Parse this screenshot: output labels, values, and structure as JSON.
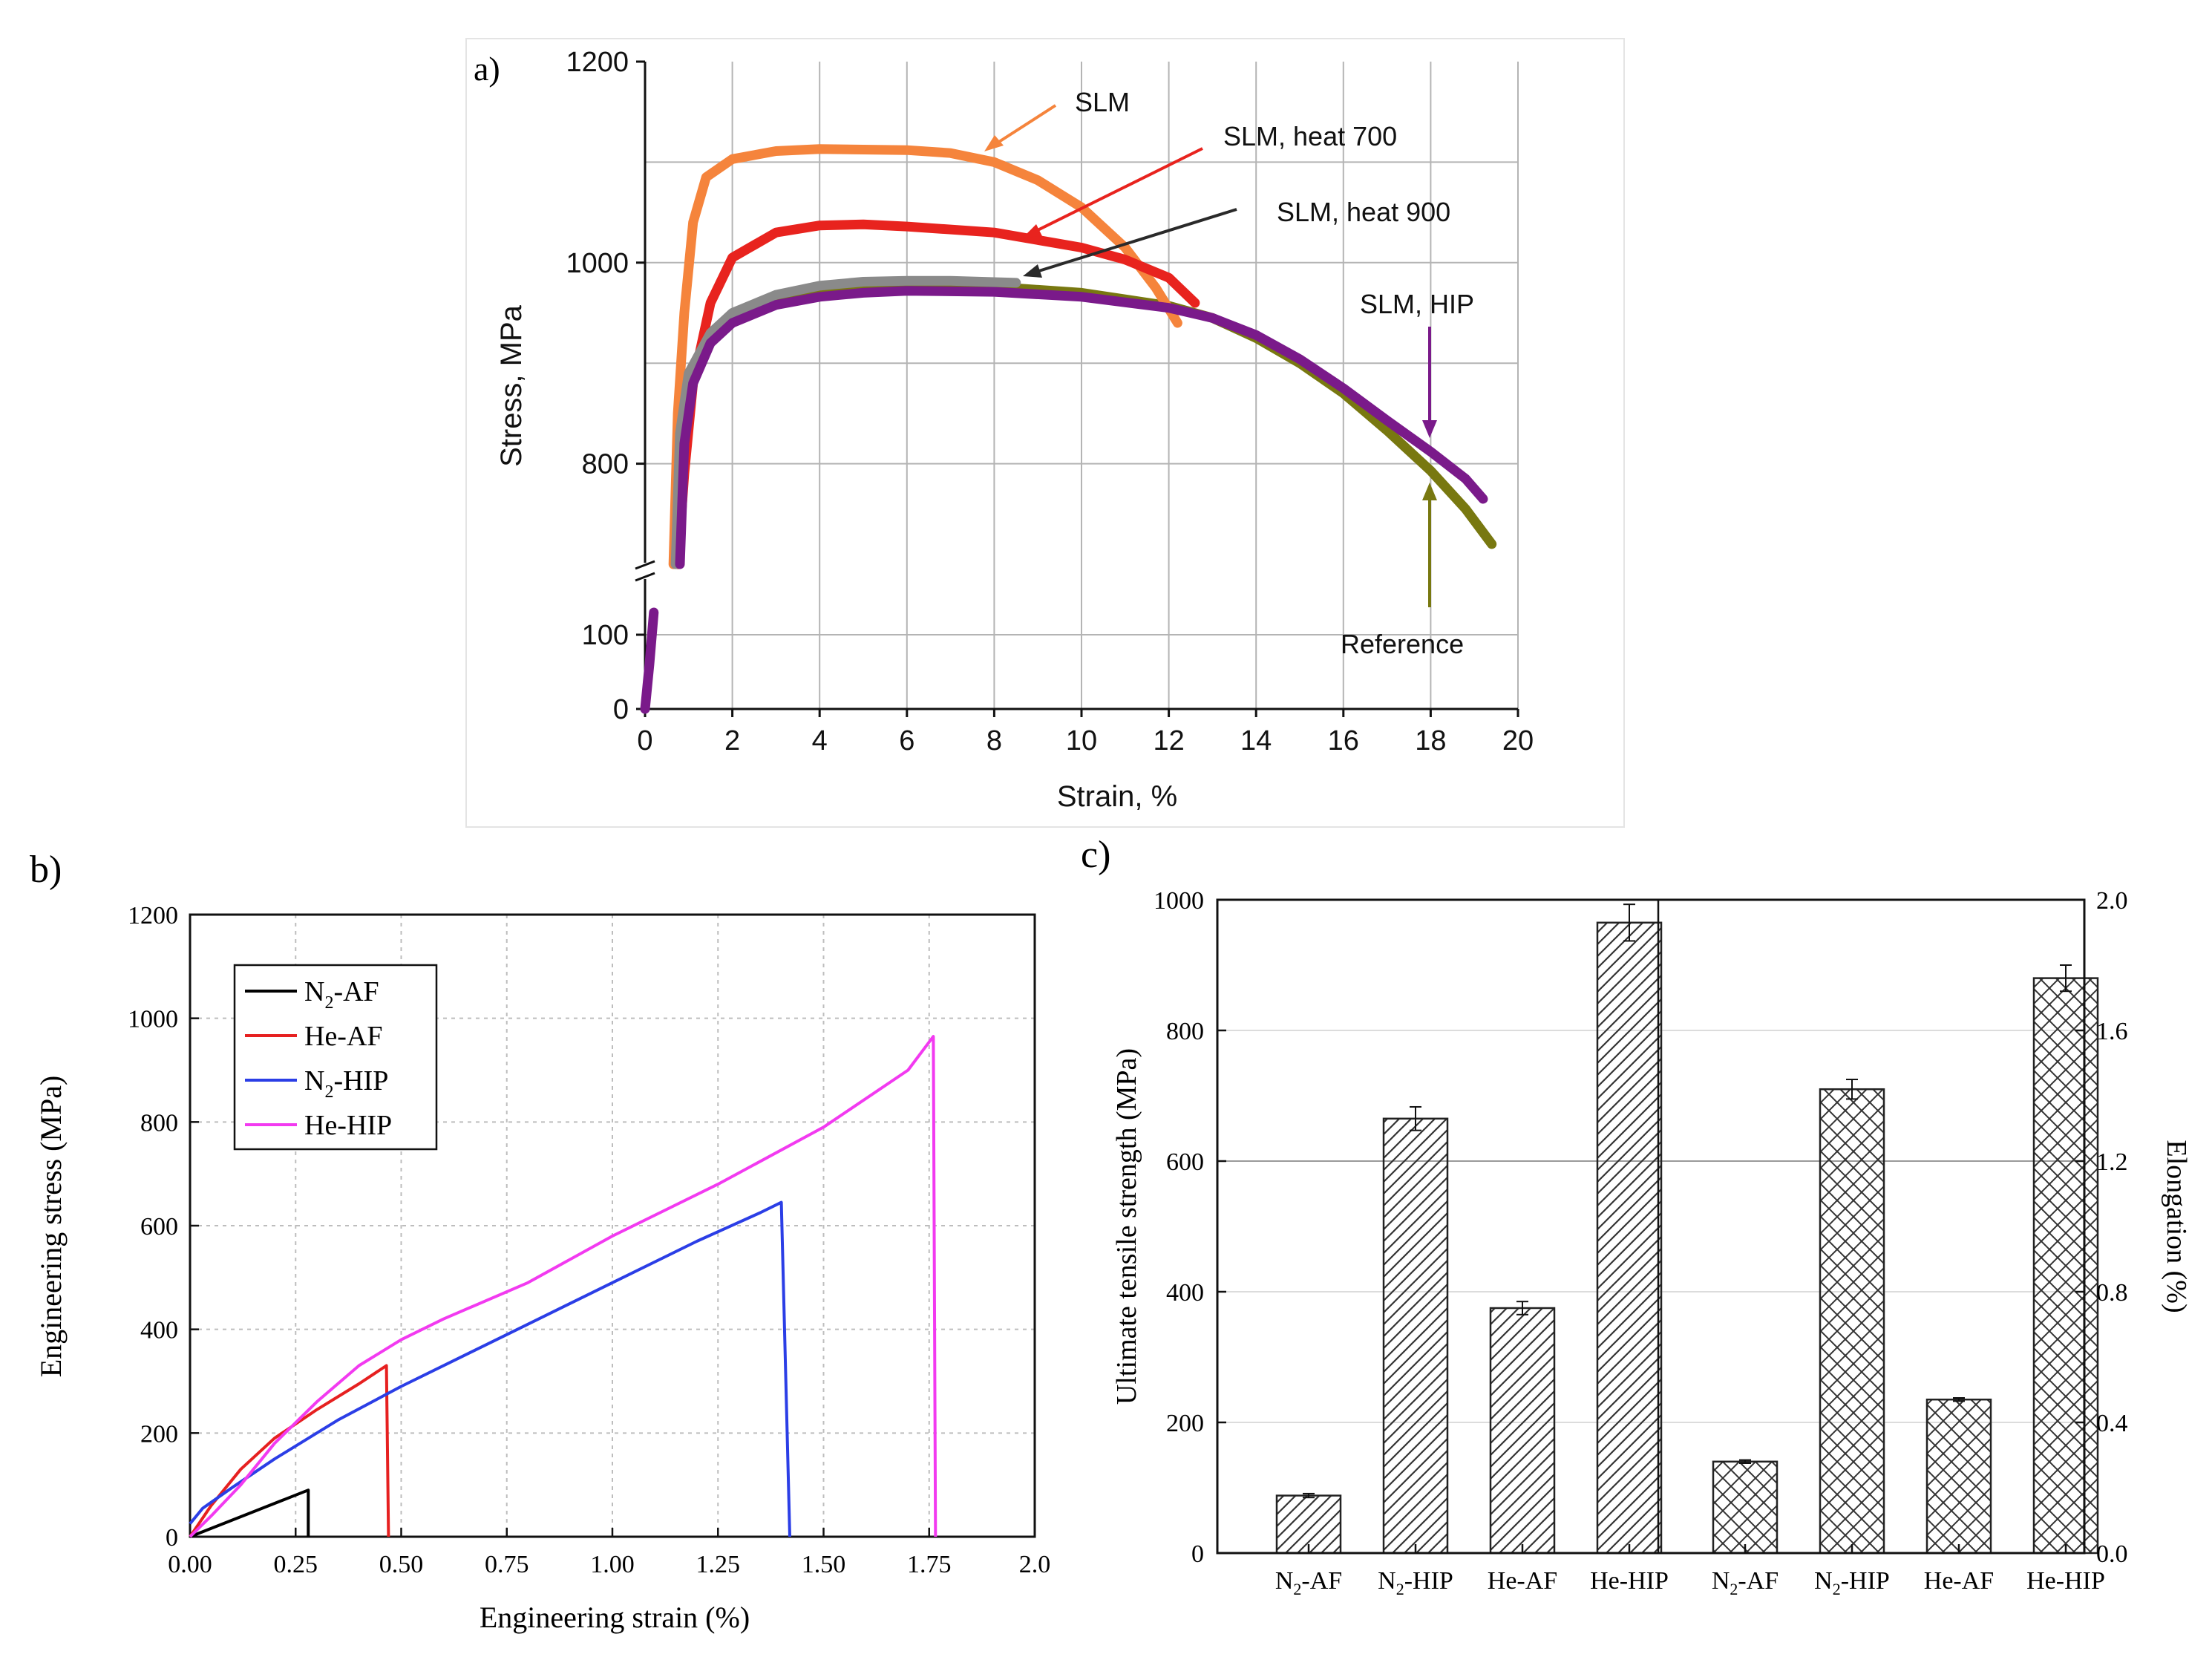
{
  "colors": {
    "SLM": "#f5843c",
    "SLM_heat700": "#e8231e",
    "SLM_heat900": "#8a8a8a",
    "SLM_HIP": "#7a1a8a",
    "Reference": "#787810",
    "N2_AF": "#000000",
    "He_AF": "#e62020",
    "N2_HIP": "#2b3ee6",
    "He_HIP": "#f23af0",
    "grid": "#b4b4b4"
  },
  "chart_data": [
    {
      "panel": "a)",
      "type": "line",
      "xlabel": "Strain, %",
      "ylabel": "Stress, MPa",
      "xlim": [
        0,
        20
      ],
      "ylim": [
        0,
        1200
      ],
      "axis_break": [
        150,
        700
      ],
      "xticks": [
        "0",
        "2",
        "4",
        "6",
        "8",
        "10",
        "12",
        "14",
        "16",
        "18",
        "20"
      ],
      "yticks_low": [
        "0",
        "100"
      ],
      "yticks_high": [
        "800",
        "1000",
        "1200"
      ],
      "series": [
        {
          "name": "SLM",
          "colorKey": "SLM",
          "annotation": "SLM",
          "points": [
            [
              0.65,
              700
            ],
            [
              0.75,
              850
            ],
            [
              0.9,
              950
            ],
            [
              1.1,
              1040
            ],
            [
              1.4,
              1085
            ],
            [
              2,
              1103
            ],
            [
              3,
              1111
            ],
            [
              4,
              1113
            ],
            [
              6,
              1112
            ],
            [
              7,
              1109
            ],
            [
              8,
              1100
            ],
            [
              9,
              1082
            ],
            [
              10,
              1055
            ],
            [
              11,
              1015
            ],
            [
              11.7,
              975
            ],
            [
              12.2,
              940
            ]
          ]
        },
        {
          "name": "SLM, heat 700",
          "colorKey": "SLM_heat700",
          "annotation": "SLM, heat 700",
          "points": [
            [
              0.75,
              700
            ],
            [
              0.9,
              790
            ],
            [
              1.1,
              880
            ],
            [
              1.5,
              960
            ],
            [
              2,
              1005
            ],
            [
              3,
              1030
            ],
            [
              4,
              1037
            ],
            [
              5,
              1038
            ],
            [
              6,
              1036
            ],
            [
              8,
              1030
            ],
            [
              10,
              1015
            ],
            [
              11,
              1003
            ],
            [
              12,
              985
            ],
            [
              12.6,
              960
            ]
          ]
        },
        {
          "name": "SLM, heat 900",
          "colorKey": "SLM_heat900",
          "annotation": "SLM, heat 900",
          "points": [
            [
              0.7,
              700
            ],
            [
              0.8,
              830
            ],
            [
              1,
              890
            ],
            [
              1.5,
              930
            ],
            [
              2,
              950
            ],
            [
              3,
              968
            ],
            [
              4,
              977
            ],
            [
              5,
              981
            ],
            [
              6,
              982
            ],
            [
              7,
              982
            ],
            [
              8.5,
              980
            ]
          ]
        },
        {
          "name": "SLM, HIP",
          "colorKey": "SLM_HIP",
          "annotation": "SLM, HIP",
          "points": [
            [
              0.8,
              700
            ],
            [
              0.9,
              820
            ],
            [
              1.1,
              880
            ],
            [
              1.5,
              920
            ],
            [
              2,
              940
            ],
            [
              3,
              958
            ],
            [
              4,
              966
            ],
            [
              5,
              970
            ],
            [
              6,
              972
            ],
            [
              8,
              971
            ],
            [
              10,
              966
            ],
            [
              12,
              955
            ],
            [
              13,
              945
            ],
            [
              14,
              928
            ],
            [
              15,
              904
            ],
            [
              16,
              875
            ],
            [
              17,
              843
            ],
            [
              18,
              812
            ],
            [
              18.8,
              785
            ],
            [
              19.2,
              765
            ]
          ]
        },
        {
          "name": "Reference",
          "colorKey": "Reference",
          "annotation": "Reference",
          "points": [
            [
              0.75,
              700
            ],
            [
              0.9,
              840
            ],
            [
              1.2,
              900
            ],
            [
              1.6,
              930
            ],
            [
              2,
              945
            ],
            [
              3,
              962
            ],
            [
              4,
              970
            ],
            [
              6,
              975
            ],
            [
              8,
              976
            ],
            [
              10,
              970
            ],
            [
              12,
              957
            ],
            [
              13,
              945
            ],
            [
              14,
              925
            ],
            [
              15,
              900
            ],
            [
              16,
              870
            ],
            [
              17,
              833
            ],
            [
              18,
              793
            ],
            [
              18.8,
              755
            ],
            [
              19.4,
              720
            ]
          ]
        },
        {
          "name": "loading segment",
          "colorKey": "SLM_HIP",
          "annotation": "",
          "points": [
            [
              0,
              0
            ],
            [
              0.1,
              60
            ],
            [
              0.2,
              130
            ]
          ]
        }
      ]
    },
    {
      "panel": "b)",
      "type": "line",
      "xlabel": "Engineering strain (%)",
      "ylabel": "Engineering stress (MPa)",
      "xlim": [
        0,
        2
      ],
      "ylim": [
        0,
        1200
      ],
      "xticks": [
        "0.00",
        "0.25",
        "0.50",
        "0.75",
        "1.00",
        "1.25",
        "1.50",
        "1.75",
        "2.0"
      ],
      "yticks": [
        "0",
        "200",
        "400",
        "600",
        "800",
        "1000",
        "1200"
      ],
      "legend": [
        "N2-AF",
        "He-AF",
        "N2-HIP",
        "He-HIP"
      ],
      "series": [
        {
          "name": "N2-AF",
          "colorKey": "N2_AF",
          "points": [
            [
              0,
              0
            ],
            [
              0.28,
              90
            ],
            [
              0.28,
              0
            ]
          ]
        },
        {
          "name": "He-AF",
          "colorKey": "He_AF",
          "points": [
            [
              0,
              0
            ],
            [
              0.05,
              60
            ],
            [
              0.12,
              130
            ],
            [
              0.2,
              190
            ],
            [
              0.3,
              245
            ],
            [
              0.4,
              295
            ],
            [
              0.465,
              330
            ],
            [
              0.47,
              0
            ]
          ]
        },
        {
          "name": "N2-HIP",
          "colorKey": "N2_HIP",
          "points": [
            [
              0,
              25
            ],
            [
              0.03,
              55
            ],
            [
              0.1,
              95
            ],
            [
              0.2,
              150
            ],
            [
              0.35,
              225
            ],
            [
              0.5,
              290
            ],
            [
              0.75,
              390
            ],
            [
              1,
              490
            ],
            [
              1.2,
              570
            ],
            [
              1.35,
              625
            ],
            [
              1.4,
              645
            ],
            [
              1.42,
              0
            ]
          ]
        },
        {
          "name": "He-HIP",
          "colorKey": "He_HIP",
          "points": [
            [
              0,
              0
            ],
            [
              0.05,
              40
            ],
            [
              0.12,
              100
            ],
            [
              0.2,
              180
            ],
            [
              0.3,
              260
            ],
            [
              0.4,
              330
            ],
            [
              0.5,
              380
            ],
            [
              0.6,
              420
            ],
            [
              0.8,
              490
            ],
            [
              1,
              580
            ],
            [
              1.25,
              680
            ],
            [
              1.5,
              790
            ],
            [
              1.7,
              900
            ],
            [
              1.76,
              965
            ],
            [
              1.765,
              0
            ]
          ]
        }
      ]
    },
    {
      "panel": "c)",
      "type": "bar",
      "categories_left": [
        "N2-AF",
        "N2-HIP",
        "He-AF",
        "He-HIP"
      ],
      "categories_right": [
        "N2-AF",
        "N2-HIP",
        "He-AF",
        "He-HIP"
      ],
      "ylabel": "Ultimate tensile strength (MPa)",
      "y2label": "Elongation (%)",
      "ylim": [
        0,
        1000
      ],
      "y2lim": [
        0,
        2.0
      ],
      "yticks": [
        "0",
        "200",
        "400",
        "600",
        "800",
        "1000"
      ],
      "y2ticks": [
        "0.0",
        "0.4",
        "0.8",
        "1.2",
        "1.6",
        "2.0"
      ],
      "uts_values": [
        88,
        665,
        375,
        965
      ],
      "uts_errors": [
        3,
        18,
        10,
        28
      ],
      "elongation_values": [
        0.28,
        1.42,
        0.47,
        1.76
      ],
      "elongation_errors": [
        0.005,
        0.03,
        0.005,
        0.04
      ]
    }
  ]
}
